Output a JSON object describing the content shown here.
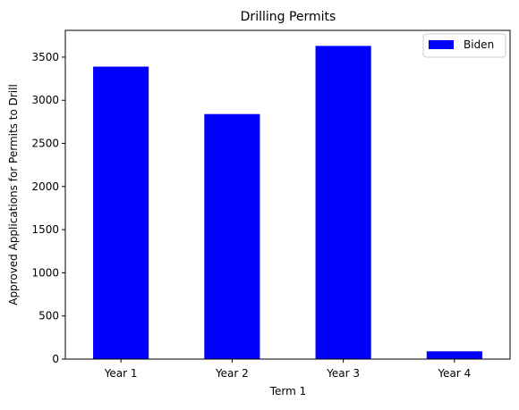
{
  "chart_data": {
    "type": "bar",
    "title": "Drilling Permits",
    "xlabel": "Term 1",
    "ylabel": "Approved Applications for Permits to Drill",
    "categories": [
      "Year 1",
      "Year 2",
      "Year 3",
      "Year 4"
    ],
    "series": [
      {
        "name": "Biden",
        "values": [
          3390,
          2840,
          3630,
          90
        ],
        "color": "#0000ff"
      }
    ],
    "ylim": [
      0,
      3810
    ],
    "yticks": [
      0,
      500,
      1000,
      1500,
      2000,
      2500,
      3000,
      3500
    ],
    "grid": false,
    "legend_position": "top-right"
  }
}
